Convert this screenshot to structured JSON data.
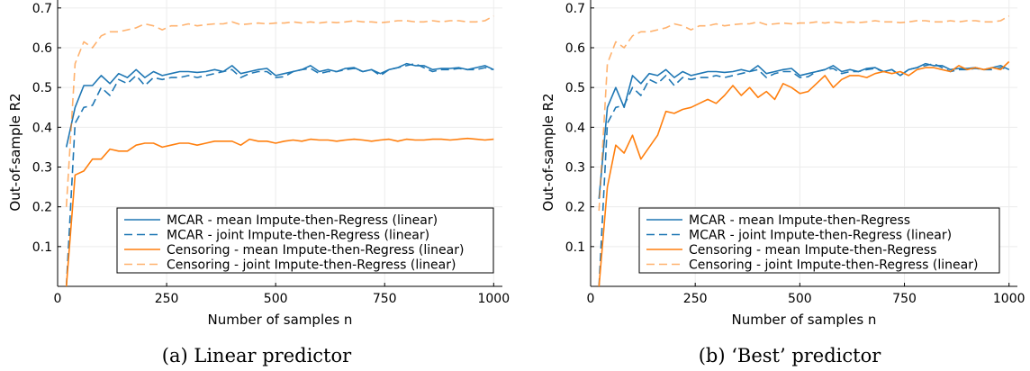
{
  "colors": {
    "blue": "#1f77b4",
    "orange": "#ff7f0e",
    "grid": "#ececec",
    "axis": "#000000"
  },
  "chart_data": [
    {
      "type": "line",
      "caption": "(a) Linear predictor",
      "xlabel": "Number of samples n",
      "ylabel": "Out-of-sample R2",
      "xlim": [
        0,
        1020
      ],
      "ylim": [
        0,
        0.72
      ],
      "xticks": [
        0,
        250,
        500,
        750,
        1000
      ],
      "yticks": [
        0.1,
        0.2,
        0.3,
        0.4,
        0.5,
        0.6,
        0.7
      ],
      "grid": true,
      "legend_position": "bottom-right",
      "x": [
        20,
        40,
        60,
        80,
        100,
        120,
        140,
        160,
        180,
        200,
        220,
        240,
        260,
        280,
        300,
        320,
        340,
        360,
        380,
        400,
        420,
        440,
        460,
        480,
        500,
        520,
        540,
        560,
        580,
        600,
        620,
        640,
        660,
        680,
        700,
        720,
        740,
        760,
        780,
        800,
        820,
        840,
        860,
        880,
        900,
        920,
        940,
        960,
        980,
        1000
      ],
      "series": [
        {
          "name": "MCAR - mean Impute-then-Regress (linear)",
          "color": "blue",
          "dash": "solid",
          "values": [
            0.35,
            0.45,
            0.505,
            0.505,
            0.53,
            0.51,
            0.535,
            0.525,
            0.545,
            0.525,
            0.54,
            0.53,
            0.535,
            0.54,
            0.54,
            0.538,
            0.54,
            0.545,
            0.54,
            0.555,
            0.535,
            0.54,
            0.545,
            0.548,
            0.53,
            0.535,
            0.54,
            0.545,
            0.555,
            0.54,
            0.545,
            0.54,
            0.548,
            0.55,
            0.54,
            0.545,
            0.535,
            0.545,
            0.55,
            0.56,
            0.555,
            0.555,
            0.545,
            0.548,
            0.548,
            0.55,
            0.545,
            0.55,
            0.555,
            0.545
          ]
        },
        {
          "name": "MCAR - joint Impute-then-Regress (linear)",
          "color": "blue",
          "dash": "dash",
          "values": [
            0.0,
            0.41,
            0.45,
            0.455,
            0.5,
            0.48,
            0.52,
            0.51,
            0.53,
            0.505,
            0.525,
            0.52,
            0.525,
            0.525,
            0.53,
            0.525,
            0.53,
            0.535,
            0.54,
            0.545,
            0.525,
            0.535,
            0.54,
            0.54,
            0.525,
            0.527,
            0.54,
            0.545,
            0.548,
            0.535,
            0.54,
            0.54,
            0.545,
            0.548,
            0.54,
            0.545,
            0.53,
            0.545,
            0.55,
            0.555,
            0.56,
            0.55,
            0.54,
            0.545,
            0.545,
            0.548,
            0.545,
            0.545,
            0.55,
            0.545
          ]
        },
        {
          "name": "Censoring - mean Impute-then-Regress (linear)",
          "color": "orange",
          "dash": "solid",
          "values": [
            0.0,
            0.28,
            0.29,
            0.32,
            0.32,
            0.345,
            0.34,
            0.34,
            0.355,
            0.36,
            0.36,
            0.35,
            0.355,
            0.36,
            0.36,
            0.355,
            0.36,
            0.365,
            0.365,
            0.365,
            0.355,
            0.37,
            0.365,
            0.365,
            0.36,
            0.365,
            0.368,
            0.365,
            0.37,
            0.368,
            0.368,
            0.365,
            0.368,
            0.37,
            0.368,
            0.365,
            0.368,
            0.37,
            0.365,
            0.37,
            0.368,
            0.368,
            0.37,
            0.37,
            0.368,
            0.37,
            0.372,
            0.37,
            0.368,
            0.37
          ]
        },
        {
          "name": "Censoring - joint Impute-then-Regress (linear)",
          "color": "orange",
          "dash": "dash",
          "values": [
            0.2,
            0.56,
            0.615,
            0.6,
            0.63,
            0.64,
            0.64,
            0.645,
            0.65,
            0.66,
            0.655,
            0.645,
            0.655,
            0.655,
            0.66,
            0.655,
            0.658,
            0.66,
            0.66,
            0.665,
            0.658,
            0.66,
            0.662,
            0.66,
            0.662,
            0.662,
            0.665,
            0.662,
            0.665,
            0.662,
            0.665,
            0.663,
            0.665,
            0.668,
            0.665,
            0.665,
            0.663,
            0.665,
            0.668,
            0.668,
            0.665,
            0.665,
            0.668,
            0.665,
            0.668,
            0.668,
            0.665,
            0.665,
            0.668,
            0.68
          ]
        }
      ]
    },
    {
      "type": "line",
      "caption": "(b) ‘Best’ predictor",
      "xlabel": "Number of samples n",
      "ylabel": "Out-of-sample R2",
      "xlim": [
        0,
        1020
      ],
      "ylim": [
        0,
        0.72
      ],
      "xticks": [
        0,
        250,
        500,
        750,
        1000
      ],
      "yticks": [
        0.1,
        0.2,
        0.3,
        0.4,
        0.5,
        0.6,
        0.7
      ],
      "grid": true,
      "legend_position": "bottom-right",
      "x": [
        20,
        40,
        60,
        80,
        100,
        120,
        140,
        160,
        180,
        200,
        220,
        240,
        260,
        280,
        300,
        320,
        340,
        360,
        380,
        400,
        420,
        440,
        460,
        480,
        500,
        520,
        540,
        560,
        580,
        600,
        620,
        640,
        660,
        680,
        700,
        720,
        740,
        760,
        780,
        800,
        820,
        840,
        860,
        880,
        900,
        920,
        940,
        960,
        980,
        1000
      ],
      "series": [
        {
          "name": "MCAR - mean Impute-then-Regress",
          "color": "blue",
          "dash": "solid",
          "values": [
            0.22,
            0.45,
            0.5,
            0.45,
            0.53,
            0.51,
            0.535,
            0.53,
            0.545,
            0.525,
            0.54,
            0.53,
            0.535,
            0.54,
            0.54,
            0.538,
            0.54,
            0.545,
            0.54,
            0.555,
            0.535,
            0.54,
            0.545,
            0.548,
            0.53,
            0.535,
            0.54,
            0.545,
            0.555,
            0.54,
            0.545,
            0.54,
            0.548,
            0.55,
            0.54,
            0.545,
            0.53,
            0.545,
            0.55,
            0.56,
            0.555,
            0.555,
            0.545,
            0.548,
            0.548,
            0.55,
            0.545,
            0.55,
            0.555,
            0.545
          ]
        },
        {
          "name": "MCAR - joint Impute-then-Regress (linear)",
          "color": "blue",
          "dash": "dash",
          "values": [
            0.0,
            0.41,
            0.45,
            0.455,
            0.5,
            0.48,
            0.52,
            0.51,
            0.53,
            0.505,
            0.525,
            0.52,
            0.525,
            0.525,
            0.53,
            0.525,
            0.53,
            0.535,
            0.54,
            0.545,
            0.525,
            0.535,
            0.54,
            0.54,
            0.525,
            0.527,
            0.54,
            0.545,
            0.548,
            0.535,
            0.54,
            0.54,
            0.545,
            0.548,
            0.54,
            0.545,
            0.53,
            0.545,
            0.55,
            0.555,
            0.56,
            0.55,
            0.54,
            0.545,
            0.545,
            0.548,
            0.545,
            0.545,
            0.55,
            0.545
          ]
        },
        {
          "name": "Censoring - mean Impute-then-Regress",
          "color": "orange",
          "dash": "solid",
          "values": [
            0.0,
            0.25,
            0.355,
            0.335,
            0.38,
            0.32,
            0.35,
            0.38,
            0.44,
            0.435,
            0.445,
            0.45,
            0.46,
            0.47,
            0.46,
            0.48,
            0.505,
            0.48,
            0.5,
            0.475,
            0.49,
            0.47,
            0.51,
            0.5,
            0.485,
            0.49,
            0.51,
            0.53,
            0.5,
            0.52,
            0.53,
            0.53,
            0.525,
            0.535,
            0.54,
            0.535,
            0.54,
            0.53,
            0.545,
            0.55,
            0.55,
            0.545,
            0.54,
            0.555,
            0.545,
            0.55,
            0.545,
            0.55,
            0.545,
            0.565
          ]
        },
        {
          "name": "Censoring - joint Impute-then-Regress (linear)",
          "color": "orange",
          "dash": "dash",
          "values": [
            0.19,
            0.56,
            0.615,
            0.6,
            0.63,
            0.64,
            0.64,
            0.645,
            0.65,
            0.66,
            0.655,
            0.645,
            0.655,
            0.655,
            0.66,
            0.655,
            0.658,
            0.66,
            0.66,
            0.665,
            0.658,
            0.66,
            0.662,
            0.66,
            0.662,
            0.662,
            0.665,
            0.662,
            0.665,
            0.662,
            0.665,
            0.663,
            0.665,
            0.668,
            0.665,
            0.665,
            0.663,
            0.665,
            0.668,
            0.668,
            0.665,
            0.665,
            0.668,
            0.665,
            0.668,
            0.668,
            0.665,
            0.665,
            0.668,
            0.68
          ]
        }
      ]
    }
  ]
}
